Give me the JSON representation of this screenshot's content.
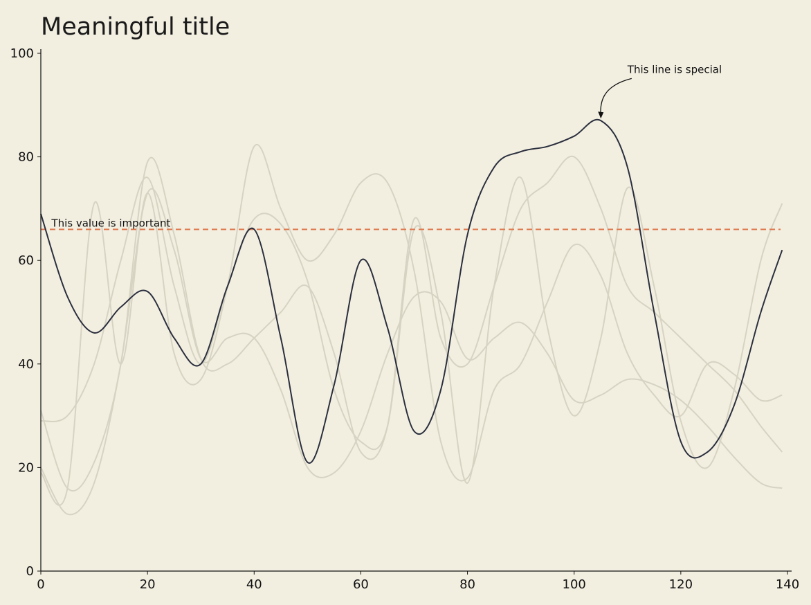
{
  "chart_data": {
    "type": "line",
    "title": "Meaningful title",
    "xlabel": "",
    "ylabel": "",
    "xlim": [
      0,
      140
    ],
    "ylim": [
      0,
      100
    ],
    "x_ticks": [
      0,
      20,
      40,
      60,
      80,
      100,
      120,
      140
    ],
    "y_ticks": [
      0,
      20,
      40,
      60,
      80,
      100
    ],
    "grid": false,
    "series_x": [
      0,
      5,
      10,
      15,
      20,
      25,
      30,
      35,
      40,
      45,
      50,
      55,
      60,
      65,
      70,
      75,
      80,
      85,
      90,
      95,
      100,
      105,
      110,
      115,
      120,
      125,
      130,
      135,
      139
    ],
    "series": [
      {
        "highlight": true,
        "values": [
          69,
          53,
          46,
          51,
          54,
          45,
          40,
          55,
          66,
          45,
          21,
          36,
          60,
          47,
          27,
          35,
          65,
          78,
          81,
          82,
          84,
          87,
          78,
          50,
          25,
          23,
          32,
          50,
          62
        ]
      },
      {
        "highlight": false,
        "values": [
          20,
          11,
          17,
          40,
          73,
          62,
          41,
          45,
          45,
          35,
          20,
          19,
          27,
          42,
          53,
          52,
          41,
          45,
          48,
          42,
          33,
          34,
          37,
          36,
          33,
          28,
          22,
          17,
          16
        ]
      },
      {
        "highlight": false,
        "values": [
          29,
          30,
          40,
          60,
          76,
          55,
          40,
          55,
          68,
          67,
          56,
          35,
          25,
          28,
          66,
          50,
          17,
          55,
          76,
          47,
          30,
          45,
          74,
          55,
          29,
          20,
          35,
          60,
          71
        ]
      },
      {
        "highlight": false,
        "values": [
          31,
          16,
          21,
          40,
          79,
          65,
          41,
          40,
          45,
          50,
          55,
          42,
          23,
          28,
          68,
          45,
          40,
          55,
          70,
          75,
          80,
          70,
          55,
          50,
          45,
          40,
          35,
          28,
          23
        ]
      },
      {
        "highlight": false,
        "values": [
          19,
          16,
          71,
          40,
          73,
          42,
          37,
          55,
          82,
          70,
          60,
          65,
          75,
          75,
          58,
          25,
          18,
          35,
          40,
          52,
          63,
          57,
          42,
          34,
          30,
          40,
          38,
          33,
          34
        ]
      }
    ],
    "reference_line": {
      "y": 66,
      "label": "This value is important",
      "color": "#e07b4f"
    },
    "annotation": {
      "text": "This line is special",
      "point_x": 105,
      "point_y": 87
    },
    "colors": {
      "background": "#f2efe1",
      "highlight": "#2b2f3e",
      "muted": "#d6d3c3",
      "axis": "#111111"
    }
  }
}
